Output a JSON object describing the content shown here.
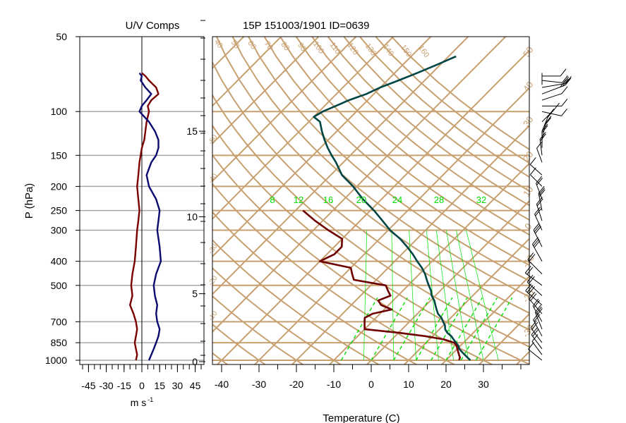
{
  "chart_data": [
    {
      "type": "line",
      "title": "U/V Comps",
      "xlabel": "m s",
      "xlabel_superscript": "-1",
      "ylabel": "P (hPa)",
      "xlim": [
        -50,
        50
      ],
      "xticks": [
        -45,
        -30,
        -15,
        0,
        15,
        30,
        45
      ],
      "y_log_pressure": true,
      "ylim": [
        1000,
        50
      ],
      "pressure_ticks": [
        1000,
        850,
        700,
        500,
        400,
        300,
        250,
        200,
        150,
        100,
        50
      ],
      "grid": true,
      "colors": {
        "u": "#7a0000",
        "v": "#0a0a70",
        "grid": "#a8a8a8"
      },
      "series": [
        {
          "key": "u",
          "p": [
            1000,
            950,
            900,
            850,
            800,
            750,
            700,
            650,
            600,
            550,
            500,
            450,
            400,
            350,
            300,
            275,
            250,
            225,
            200,
            180,
            160,
            150,
            140,
            130,
            120,
            110,
            100,
            95,
            90,
            85,
            80,
            75,
            72,
            70
          ],
          "value": [
            -5,
            -4,
            -5,
            -6,
            -5,
            -4,
            -5,
            -7,
            -10,
            -8,
            -9,
            -8,
            -6,
            -5,
            -4,
            -3,
            -2,
            -3,
            -4,
            -3,
            -2,
            -1,
            0,
            2,
            3,
            4,
            6,
            5,
            8,
            14,
            12,
            6,
            3,
            0
          ]
        },
        {
          "key": "v",
          "p": [
            1000,
            950,
            900,
            850,
            800,
            750,
            700,
            650,
            600,
            550,
            500,
            450,
            400,
            350,
            300,
            275,
            250,
            225,
            200,
            180,
            160,
            150,
            140,
            130,
            120,
            110,
            100,
            95,
            90,
            85,
            80,
            75,
            72,
            70
          ],
          "value": [
            6,
            8,
            10,
            12,
            14,
            15,
            13,
            12,
            13,
            11,
            10,
            12,
            16,
            15,
            13,
            14,
            15,
            12,
            6,
            4,
            8,
            12,
            14,
            14,
            11,
            6,
            -2,
            0,
            4,
            8,
            3,
            -1,
            0,
            -2
          ]
        }
      ]
    },
    {
      "type": "line",
      "title": "15P 151003/1901 ID=0639",
      "xlabel": "Temperature (C)",
      "xticks": [
        -40,
        -30,
        -20,
        -10,
        0,
        10,
        20,
        30
      ],
      "height_ticks_km": [
        0,
        5,
        10,
        15
      ],
      "height_ticks_at_hpa": [
        1013,
        540,
        265,
        120
      ],
      "skew_t": true,
      "grid": true,
      "isotherm_labels": [
        -50,
        -40,
        -30,
        -20,
        -10,
        0,
        10,
        20,
        30,
        40,
        50
      ],
      "potential_temp_labels": [
        40,
        50,
        60,
        70,
        80,
        90,
        100,
        110,
        120,
        130,
        140,
        150,
        160
      ],
      "side_labels": [
        50,
        40,
        30,
        20,
        10,
        0,
        -10,
        -20,
        -30
      ],
      "mixing_ratio_labels": [
        8,
        12,
        16,
        20,
        24,
        28,
        32
      ],
      "colors": {
        "grid": "#c8a070",
        "temperature": "#004545",
        "dewpoint": "#6e0000",
        "moist_adiabat": "#00e000"
      },
      "series": [
        {
          "key": "temperature",
          "p": [
            1000,
            975,
            950,
            925,
            900,
            875,
            850,
            825,
            800,
            775,
            750,
            725,
            700,
            675,
            650,
            625,
            600,
            575,
            550,
            525,
            500,
            475,
            450,
            425,
            400,
            375,
            350,
            325,
            300,
            275,
            250,
            225,
            200,
            180,
            160,
            150,
            140,
            130,
            120,
            110,
            105,
            100,
            95,
            90,
            85,
            80,
            75,
            70,
            65,
            60
          ],
          "t": [
            26.5,
            25.0,
            23.5,
            22.0,
            20.5,
            19.5,
            18.0,
            16.5,
            15.0,
            13.0,
            11.5,
            10.5,
            9.0,
            7.5,
            5.5,
            4.0,
            2.5,
            1.0,
            -1.0,
            -2.5,
            -4.5,
            -6.5,
            -8.5,
            -11.0,
            -14.0,
            -17.0,
            -20.5,
            -24.5,
            -29.5,
            -34.0,
            -39.0,
            -45.0,
            -51.0,
            -57.0,
            -62.0,
            -65.0,
            -68.0,
            -71.0,
            -74.0,
            -77.0,
            -80.0,
            -79.0,
            -77.0,
            -75.0,
            -72.0,
            -70.0,
            -67.0,
            -64.0,
            -61.0,
            -58.0
          ]
        },
        {
          "key": "dewpoint",
          "p": [
            1000,
            975,
            950,
            925,
            900,
            875,
            850,
            825,
            800,
            775,
            750,
            725,
            700,
            675,
            650,
            625,
            600,
            575,
            550,
            525,
            500,
            475,
            450,
            425,
            400,
            375,
            350,
            325,
            300,
            275,
            250
          ],
          "td": [
            23.5,
            23.0,
            22.0,
            21.0,
            20.0,
            19.0,
            17.5,
            14.0,
            8.0,
            0.0,
            -10.0,
            -11.0,
            -12.0,
            -13.0,
            -12.0,
            -8.0,
            -12.0,
            -14.0,
            -12.0,
            -14.0,
            -16.0,
            -26.0,
            -28.0,
            -30.0,
            -40.0,
            -38.0,
            -38.0,
            -40.0,
            -46.0,
            -52.0,
            -58.0
          ]
        }
      ]
    }
  ]
}
